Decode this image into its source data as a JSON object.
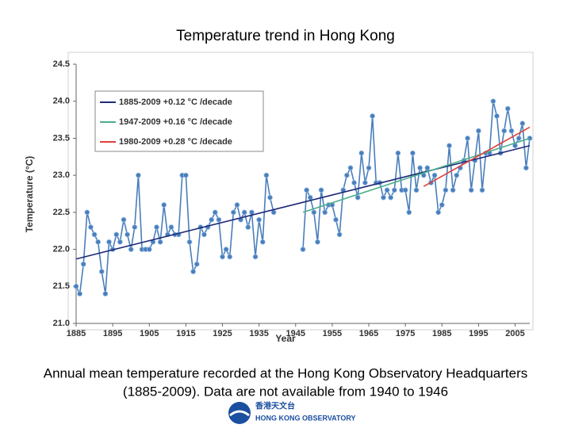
{
  "chart_data": {
    "type": "line",
    "title": "Temperature trend in Hong Kong",
    "x_label": "Year",
    "y_label": "Temperature (°C)",
    "x": [
      1885,
      1886,
      1887,
      1888,
      1889,
      1890,
      1891,
      1892,
      1893,
      1894,
      1895,
      1896,
      1897,
      1898,
      1899,
      1900,
      1901,
      1902,
      1903,
      1904,
      1905,
      1906,
      1907,
      1908,
      1909,
      1910,
      1911,
      1912,
      1913,
      1914,
      1915,
      1916,
      1917,
      1918,
      1919,
      1920,
      1921,
      1922,
      1923,
      1924,
      1925,
      1926,
      1927,
      1928,
      1929,
      1930,
      1931,
      1932,
      1933,
      1934,
      1935,
      1936,
      1937,
      1938,
      1939,
      1940,
      1941,
      1942,
      1943,
      1944,
      1945,
      1946,
      1947,
      1948,
      1949,
      1950,
      1951,
      1952,
      1953,
      1954,
      1955,
      1956,
      1957,
      1958,
      1959,
      1960,
      1961,
      1962,
      1963,
      1964,
      1965,
      1966,
      1967,
      1968,
      1969,
      1970,
      1971,
      1972,
      1973,
      1974,
      1975,
      1976,
      1977,
      1978,
      1979,
      1980,
      1981,
      1982,
      1983,
      1984,
      1985,
      1986,
      1987,
      1988,
      1989,
      1990,
      1991,
      1992,
      1993,
      1994,
      1995,
      1996,
      1997,
      1998,
      1999,
      2000,
      2001,
      2002,
      2003,
      2004,
      2005,
      2006,
      2007,
      2008,
      2009
    ],
    "series": [
      {
        "color": "#4a7ebb",
        "values": [
          21.5,
          21.4,
          21.8,
          22.5,
          22.3,
          22.2,
          22.1,
          21.7,
          21.4,
          22.1,
          22.0,
          22.2,
          22.1,
          22.4,
          22.2,
          22.0,
          22.3,
          23.0,
          22.0,
          22.0,
          22.0,
          22.1,
          22.3,
          22.1,
          22.6,
          22.2,
          22.3,
          22.2,
          22.2,
          23.0,
          23.0,
          22.1,
          21.7,
          21.8,
          22.3,
          22.2,
          22.3,
          22.4,
          22.5,
          22.4,
          21.9,
          22.0,
          21.9,
          22.5,
          22.6,
          22.4,
          22.5,
          22.3,
          22.5,
          21.9,
          22.4,
          22.1,
          23.0,
          22.7,
          22.5,
          null,
          null,
          null,
          null,
          null,
          null,
          null,
          22.0,
          22.8,
          22.7,
          22.5,
          22.1,
          22.8,
          22.5,
          22.6,
          22.6,
          22.4,
          22.2,
          22.8,
          23.0,
          23.1,
          22.9,
          22.7,
          23.3,
          22.9,
          23.1,
          23.8,
          22.9,
          22.9,
          22.7,
          22.8,
          22.7,
          22.8,
          23.3,
          22.8,
          22.8,
          22.5,
          23.3,
          22.8,
          23.1,
          23.0,
          23.1,
          22.9,
          23.0,
          22.5,
          22.6,
          22.8,
          23.4,
          22.8,
          23.0,
          23.1,
          23.2,
          23.5,
          22.8,
          23.2,
          23.6,
          22.8,
          23.3,
          23.3,
          24.0,
          23.8,
          23.3,
          23.6,
          23.9,
          23.6,
          23.4,
          23.5,
          23.7,
          23.1,
          23.5
        ]
      }
    ],
    "trends": [
      {
        "name": "1885-2009 +0.12 °C /decade",
        "color": "#1f2a7a",
        "x": [
          1885,
          2009
        ],
        "values": [
          21.87,
          23.4
        ]
      },
      {
        "name": "1947-2009 +0.16 °C /decade",
        "color": "#4cae8a",
        "x": [
          1947,
          2009
        ],
        "values": [
          22.5,
          23.5
        ]
      },
      {
        "name": "1980-2009 +0.28 °C /decade",
        "color": "#e0403a",
        "x": [
          1980,
          2009
        ],
        "values": [
          22.85,
          23.65
        ]
      }
    ],
    "xlim": [
      1885,
      2009
    ],
    "xticks": [
      1885,
      1895,
      1905,
      1915,
      1925,
      1935,
      1945,
      1955,
      1965,
      1975,
      1985,
      1995,
      2005
    ],
    "ylim": [
      21,
      24.5
    ],
    "yticks": [
      {
        "value": 21,
        "label": "21.0"
      },
      21.5,
      {
        "value": 22,
        "label": "22.0"
      },
      22.5,
      {
        "value": 23,
        "label": "23.0"
      },
      23.5,
      {
        "value": 24,
        "label": "24.0"
      },
      24.5
    ],
    "grid": false
  },
  "caption": [
    "Annual mean temperature recorded at the Hong Kong Observatory Headquarters",
    "(1885-2009). Data are not available from 1940 to 1946"
  ],
  "footer": {
    "chinese": "香港天文台",
    "english": "HONG KONG OBSERVATORY"
  }
}
